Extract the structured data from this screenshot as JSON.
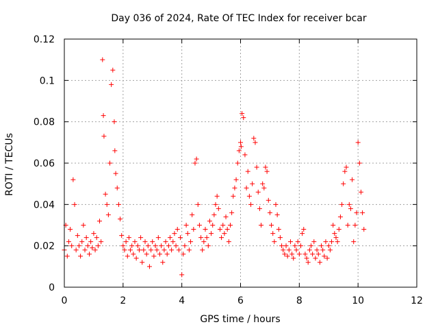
{
  "chart_data": {
    "type": "scatter",
    "title": "Day 036 of 2024, Rate Of TEC Index for receiver bcar",
    "xlabel": "GPS time / hours",
    "ylabel": "ROTI / TECUs",
    "xlim": [
      0,
      12
    ],
    "ylim": [
      0,
      0.12
    ],
    "xticks": [
      0,
      2,
      4,
      6,
      8,
      10,
      12
    ],
    "yticks": [
      0,
      0.02,
      0.04,
      0.06,
      0.08,
      0.1,
      0.12
    ],
    "xtick_labels": [
      "0",
      "2",
      "4",
      "6",
      "8",
      "10",
      "12"
    ],
    "ytick_labels": [
      "0",
      "0.02",
      "0.04",
      "0.06",
      "0.08",
      "0.1",
      "0.12"
    ],
    "grid": true,
    "marker": "+",
    "color": "#ff0000",
    "series": [
      {
        "name": "ROTI",
        "x": [
          0.0,
          0.05,
          0.1,
          0.15,
          0.2,
          0.25,
          0.3,
          0.35,
          0.4,
          0.45,
          0.5,
          0.55,
          0.6,
          0.65,
          0.7,
          0.75,
          0.8,
          0.85,
          0.9,
          0.95,
          1.0,
          1.05,
          1.1,
          1.15,
          1.2,
          1.25,
          1.3,
          1.33,
          1.35,
          1.4,
          1.45,
          1.5,
          1.55,
          1.6,
          1.65,
          1.7,
          1.72,
          1.75,
          1.8,
          1.85,
          1.9,
          1.95,
          2.0,
          2.05,
          2.1,
          2.15,
          2.2,
          2.25,
          2.3,
          2.35,
          2.4,
          2.45,
          2.5,
          2.55,
          2.6,
          2.65,
          2.7,
          2.75,
          2.8,
          2.85,
          2.9,
          2.95,
          3.0,
          3.05,
          3.1,
          3.15,
          3.2,
          3.25,
          3.3,
          3.35,
          3.4,
          3.45,
          3.5,
          3.55,
          3.6,
          3.65,
          3.7,
          3.75,
          3.8,
          3.85,
          3.9,
          3.95,
          4.0,
          4.05,
          4.1,
          4.15,
          4.2,
          4.25,
          4.3,
          4.35,
          4.4,
          4.45,
          4.5,
          4.55,
          4.6,
          4.65,
          4.7,
          4.75,
          4.8,
          4.85,
          4.9,
          4.95,
          5.0,
          5.05,
          5.1,
          5.15,
          5.2,
          5.25,
          5.3,
          5.35,
          5.4,
          5.45,
          5.5,
          5.55,
          5.6,
          5.65,
          5.7,
          5.75,
          5.8,
          5.85,
          5.9,
          5.95,
          6.0,
          6.02,
          6.05,
          6.1,
          6.15,
          6.2,
          6.25,
          6.3,
          6.35,
          6.4,
          6.45,
          6.5,
          6.55,
          6.6,
          6.65,
          6.7,
          6.75,
          6.8,
          6.85,
          6.9,
          6.95,
          7.0,
          7.05,
          7.1,
          7.15,
          7.2,
          7.25,
          7.3,
          7.35,
          7.4,
          7.45,
          7.5,
          7.55,
          7.6,
          7.65,
          7.7,
          7.75,
          7.8,
          7.85,
          7.9,
          7.95,
          8.0,
          8.05,
          8.1,
          8.15,
          8.2,
          8.25,
          8.3,
          8.35,
          8.4,
          8.45,
          8.5,
          8.55,
          8.6,
          8.65,
          8.7,
          8.75,
          8.8,
          8.85,
          8.9,
          8.95,
          9.0,
          9.05,
          9.1,
          9.15,
          9.2,
          9.25,
          9.3,
          9.35,
          9.4,
          9.45,
          9.5,
          9.55,
          9.6,
          9.65,
          9.7,
          9.75,
          9.8,
          9.85,
          9.9,
          9.95,
          10.0,
          10.05,
          10.1,
          10.15,
          10.2
        ],
        "y": [
          0.018,
          0.03,
          0.015,
          0.022,
          0.028,
          0.02,
          0.052,
          0.04,
          0.018,
          0.025,
          0.02,
          0.015,
          0.022,
          0.03,
          0.018,
          0.024,
          0.02,
          0.016,
          0.022,
          0.019,
          0.026,
          0.018,
          0.024,
          0.02,
          0.032,
          0.022,
          0.11,
          0.083,
          0.073,
          0.045,
          0.04,
          0.035,
          0.06,
          0.098,
          0.105,
          0.08,
          0.066,
          0.055,
          0.048,
          0.04,
          0.033,
          0.025,
          0.02,
          0.018,
          0.022,
          0.015,
          0.024,
          0.018,
          0.02,
          0.016,
          0.022,
          0.014,
          0.02,
          0.018,
          0.024,
          0.012,
          0.018,
          0.022,
          0.016,
          0.02,
          0.01,
          0.018,
          0.022,
          0.015,
          0.02,
          0.018,
          0.024,
          0.016,
          0.02,
          0.012,
          0.018,
          0.022,
          0.016,
          0.02,
          0.024,
          0.018,
          0.022,
          0.026,
          0.02,
          0.028,
          0.018,
          0.024,
          0.006,
          0.016,
          0.02,
          0.03,
          0.026,
          0.018,
          0.022,
          0.035,
          0.028,
          0.06,
          0.062,
          0.04,
          0.03,
          0.024,
          0.018,
          0.022,
          0.028,
          0.024,
          0.02,
          0.032,
          0.026,
          0.03,
          0.035,
          0.04,
          0.044,
          0.038,
          0.028,
          0.024,
          0.03,
          0.026,
          0.034,
          0.028,
          0.022,
          0.03,
          0.036,
          0.044,
          0.048,
          0.052,
          0.06,
          0.066,
          0.07,
          0.068,
          0.084,
          0.082,
          0.064,
          0.048,
          0.056,
          0.044,
          0.04,
          0.05,
          0.072,
          0.07,
          0.058,
          0.046,
          0.038,
          0.03,
          0.05,
          0.048,
          0.058,
          0.056,
          0.042,
          0.036,
          0.03,
          0.026,
          0.022,
          0.04,
          0.035,
          0.028,
          0.024,
          0.02,
          0.018,
          0.016,
          0.02,
          0.015,
          0.018,
          0.022,
          0.016,
          0.014,
          0.02,
          0.018,
          0.022,
          0.016,
          0.02,
          0.026,
          0.028,
          0.016,
          0.014,
          0.012,
          0.018,
          0.02,
          0.016,
          0.022,
          0.014,
          0.018,
          0.016,
          0.012,
          0.02,
          0.018,
          0.015,
          0.022,
          0.014,
          0.02,
          0.018,
          0.022,
          0.03,
          0.026,
          0.024,
          0.022,
          0.028,
          0.034,
          0.04,
          0.05,
          0.056,
          0.058,
          0.03,
          0.04,
          0.038,
          0.052,
          0.022,
          0.03,
          0.036,
          0.07,
          0.06,
          0.046,
          0.036,
          0.028
        ]
      }
    ]
  }
}
